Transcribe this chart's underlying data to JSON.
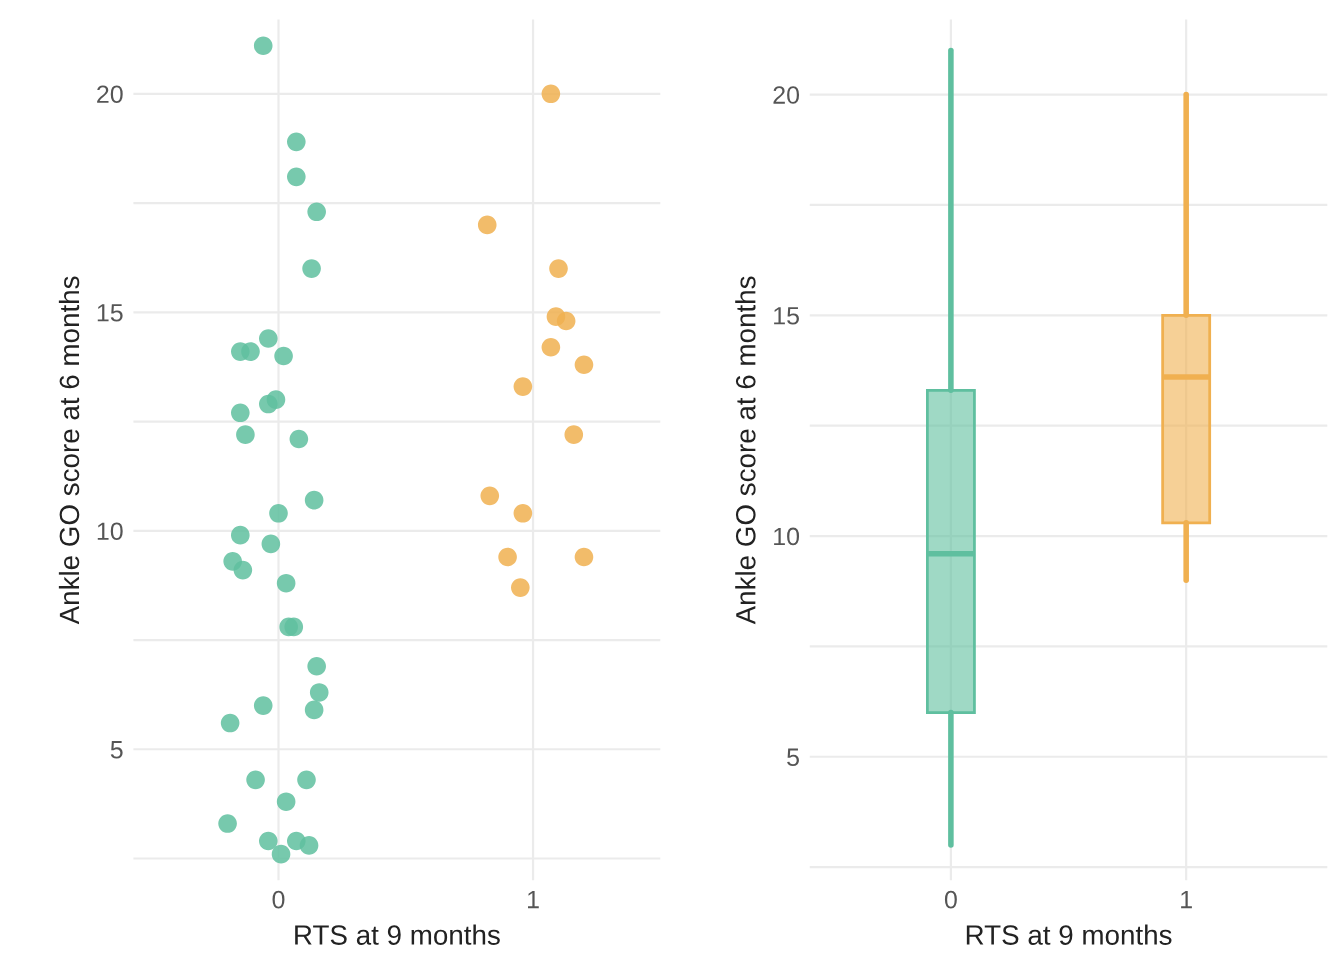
{
  "chart_data": [
    {
      "type": "scatter",
      "xlabel": "RTS at 9 months",
      "ylabel": "Ankle GO score at 6 months",
      "xlim": [
        -0.57,
        1.5
      ],
      "xticks": [
        0,
        1
      ],
      "ylim": [
        2.0,
        21.7
      ],
      "yticks": [
        {
          "value": 2.5,
          "label": null
        },
        5,
        {
          "value": 7.5,
          "label": null
        },
        10,
        {
          "value": 12.5,
          "label": null
        },
        15,
        {
          "value": 17.5,
          "label": null
        },
        20
      ],
      "grid": true,
      "marker": "circle",
      "series": [
        {
          "color": "#5fbf9f",
          "x": [
            -0.06,
            0.07,
            0.07,
            0.15,
            0.13,
            -0.04,
            -0.15,
            -0.11,
            0.02,
            -0.01,
            -0.04,
            -0.15,
            -0.13,
            0.08,
            0.14,
            0.0,
            -0.15,
            -0.03,
            -0.18,
            -0.14,
            0.03,
            0.04,
            0.06,
            0.15,
            0.16,
            -0.06,
            0.14,
            -0.19,
            -0.09,
            0.11,
            0.03,
            -0.2,
            -0.04,
            0.01,
            0.07,
            0.12
          ],
          "values": [
            21.1,
            18.9,
            18.1,
            17.3,
            16.0,
            14.4,
            14.1,
            14.1,
            14.0,
            13.0,
            12.9,
            12.7,
            12.2,
            12.1,
            10.7,
            10.4,
            9.9,
            9.7,
            9.3,
            9.1,
            8.8,
            7.8,
            7.8,
            6.9,
            6.3,
            6.0,
            5.9,
            5.6,
            4.3,
            4.3,
            3.8,
            3.3,
            2.9,
            2.6,
            2.9,
            2.8
          ]
        },
        {
          "color": "#f0b050",
          "x": [
            1.07,
            0.82,
            1.1,
            1.09,
            1.13,
            1.07,
            1.2,
            0.96,
            1.16,
            0.83,
            0.96,
            0.9,
            1.2,
            0.95
          ],
          "values": [
            20.0,
            17.0,
            16.0,
            14.9,
            14.8,
            14.2,
            13.8,
            13.3,
            12.2,
            10.8,
            10.4,
            9.4,
            9.4,
            8.7
          ]
        }
      ]
    },
    {
      "type": "box",
      "xlabel": "RTS at 9 months",
      "ylabel": "Ankle GO score at 6 months",
      "categories": [
        "0",
        "1"
      ],
      "ylim": [
        2.2,
        21.7
      ],
      "yticks": [
        {
          "value": 2.5,
          "label": null
        },
        5,
        {
          "value": 7.5,
          "label": null
        },
        10,
        {
          "value": 12.5,
          "label": null
        },
        15,
        {
          "value": 17.5,
          "label": null
        },
        20
      ],
      "grid": true,
      "colors": [
        "#5fbf9f",
        "#f0b050"
      ],
      "boxes": [
        {
          "low": 3.0,
          "q1": 6.0,
          "median": 9.6,
          "q3": 13.3,
          "high": 21.0
        },
        {
          "low": 9.0,
          "q1": 10.3,
          "median": 13.6,
          "q3": 15.0,
          "high": 20.0
        }
      ]
    }
  ]
}
